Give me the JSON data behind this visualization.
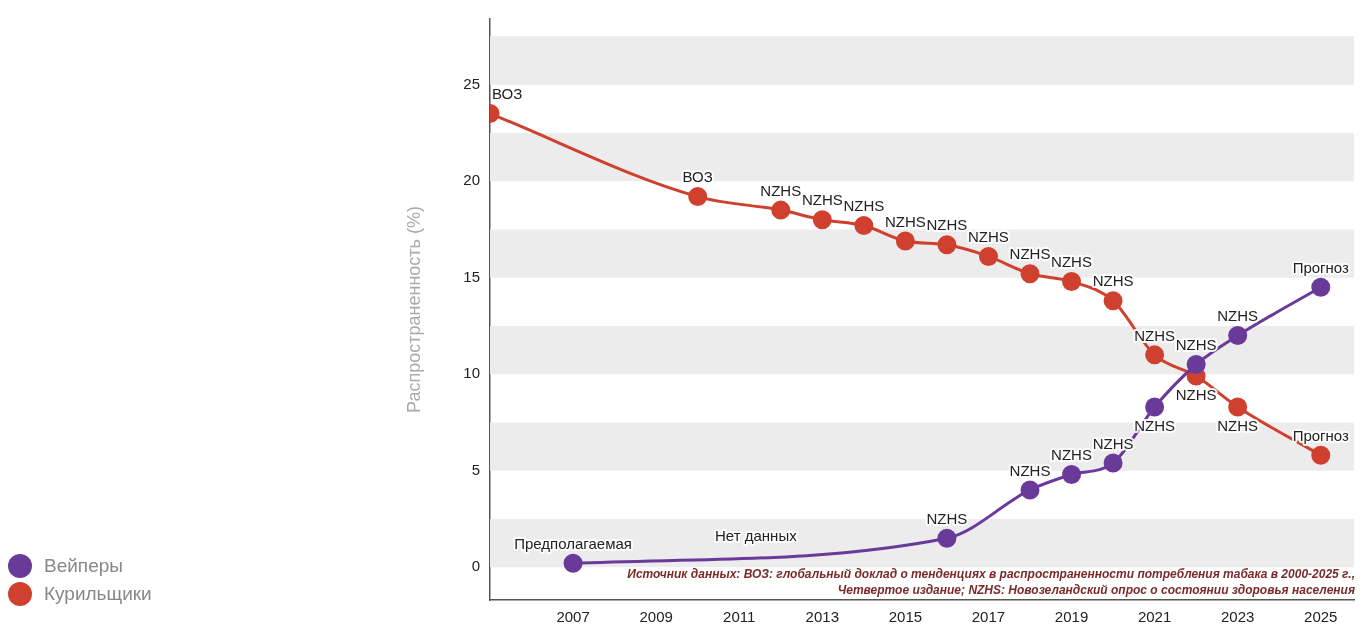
{
  "chart_data": {
    "type": "line",
    "ylabel": "Распространенность (%)",
    "xlim": [
      2005,
      2025.8
    ],
    "xticks": [
      2007,
      2009,
      2011,
      2013,
      2015,
      2017,
      2019,
      2021,
      2023,
      2025
    ],
    "ylim": [
      -1.7,
      28.4
    ],
    "yticks": [
      0,
      5,
      10,
      15,
      20,
      25
    ],
    "grid": false,
    "legend": "bottom left",
    "marker": "circle",
    "line_style": "solid",
    "bands": [
      {
        "axis": "y",
        "from": 0,
        "to": 2.5,
        "color": "#ececec"
      },
      {
        "axis": "y",
        "from": 5,
        "to": 7.5,
        "color": "#ececec"
      },
      {
        "axis": "y",
        "from": 10,
        "to": 12.5,
        "color": "#ececec"
      },
      {
        "axis": "y",
        "from": 15,
        "to": 17.5,
        "color": "#ececec"
      },
      {
        "axis": "y",
        "from": 20,
        "to": 22.5,
        "color": "#ececec"
      },
      {
        "axis": "y",
        "from": 25,
        "to": 27.5,
        "color": "#ececec"
      }
    ],
    "series": [
      {
        "name": "Вейперы",
        "color": "#6a3a9a",
        "x": [
          2007,
          2016,
          2018,
          2019,
          2020,
          2021,
          2022,
          2023,
          2025
        ],
        "values": [
          0.2,
          1.5,
          4.0,
          4.8,
          5.4,
          8.3,
          10.5,
          12.0,
          14.5
        ]
      },
      {
        "name": "Курильщики",
        "color": "#d0402f",
        "x": [
          2005,
          2010,
          2012,
          2013,
          2014,
          2015,
          2016,
          2017,
          2018,
          2019,
          2020,
          2021,
          2022,
          2023,
          2025
        ],
        "values": [
          23.5,
          19.2,
          18.5,
          18.0,
          17.7,
          16.9,
          16.7,
          16.1,
          15.2,
          14.8,
          13.8,
          11.0,
          9.9,
          8.3,
          5.8
        ]
      }
    ],
    "annotations": [
      {
        "text": "Предполагаемая",
        "x": 2007,
        "y": 0.2
      },
      {
        "text": "Нет данных",
        "x": 2011.4,
        "y": 0.6
      },
      {
        "text": "NZHS",
        "x": 2016,
        "y": 1.5
      },
      {
        "text": "NZHS",
        "x": 2018,
        "y": 4.0
      },
      {
        "text": "NZHS",
        "x": 2019,
        "y": 4.8
      },
      {
        "text": "NZHS",
        "x": 2020,
        "y": 5.4
      },
      {
        "text": "NZHS",
        "x": 2021,
        "y": 8.3
      },
      {
        "text": "NZHS",
        "x": 2022,
        "y": 10.5
      },
      {
        "text": "NZHS",
        "x": 2023,
        "y": 12.0
      },
      {
        "text": "Прогноз",
        "x": 2025,
        "y": 14.5
      },
      {
        "text": "ВОЗ",
        "x": 2005,
        "y": 23.5
      },
      {
        "text": "ВОЗ",
        "x": 2010,
        "y": 19.2
      },
      {
        "text": "NZHS",
        "x": 2012,
        "y": 18.5
      },
      {
        "text": "NZHS",
        "x": 2013,
        "y": 18.0
      },
      {
        "text": "NZHS",
        "x": 2014,
        "y": 17.7
      },
      {
        "text": "NZHS",
        "x": 2015,
        "y": 16.9
      },
      {
        "text": "NZHS",
        "x": 2016,
        "y": 16.7
      },
      {
        "text": "NZHS",
        "x": 2017,
        "y": 16.1
      },
      {
        "text": "NZHS",
        "x": 2018,
        "y": 15.2
      },
      {
        "text": "NZHS",
        "x": 2019,
        "y": 14.8
      },
      {
        "text": "NZHS",
        "x": 2020,
        "y": 13.8
      },
      {
        "text": "NZHS",
        "x": 2021,
        "y": 11.0
      },
      {
        "text": "NZHS",
        "x": 2022,
        "y": 9.9
      },
      {
        "text": "NZHS",
        "x": 2023,
        "y": 8.3
      },
      {
        "text": "Прогноз",
        "x": 2025,
        "y": 5.8
      },
      "Источник данных: ВОЗ: глобальный доклад о тенденциях в распространенности потребления табака в 2000-2025 г., Четвертое издание; NZHS: Новозеландский опрос о состоянии здоровья населения"
    ]
  }
}
